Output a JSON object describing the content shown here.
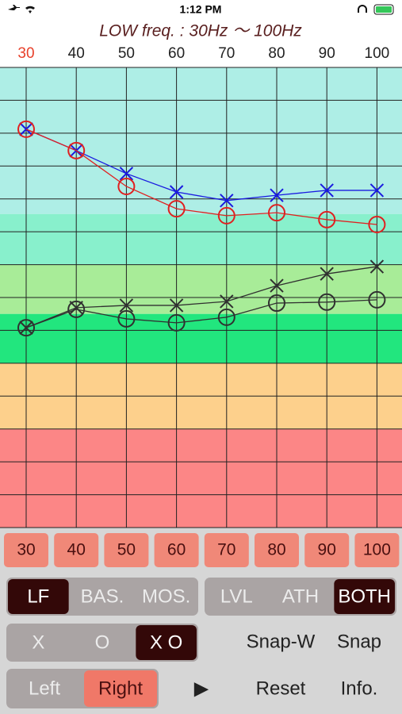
{
  "status_bar": {
    "time": "1:12 PM"
  },
  "chart_data": {
    "type": "line",
    "title": "LOW freq. : 30Hz 〜 100Hz",
    "categories": [
      "30",
      "40",
      "50",
      "60",
      "70",
      "80",
      "90",
      "100"
    ],
    "selected_index": 0,
    "highlight_color": "#e8402a",
    "ylim": [
      0,
      14
    ],
    "y_inverted": true,
    "yticks": [
      0,
      1,
      2,
      3,
      4,
      5,
      6,
      7,
      8,
      9,
      10,
      11,
      12,
      13,
      14
    ],
    "grid": true,
    "bands": [
      {
        "from": 0,
        "to": 4.46,
        "color": "#aeeee6"
      },
      {
        "from": 4.46,
        "to": 6,
        "color": "#88f0cc"
      },
      {
        "from": 6,
        "to": 7.5,
        "color": "#a8ec98"
      },
      {
        "from": 7.5,
        "to": 9,
        "color": "#22e67e"
      },
      {
        "from": 9,
        "to": 11,
        "color": "#fdd08c"
      },
      {
        "from": 11,
        "to": 14,
        "color": "#fc8686"
      }
    ],
    "series": [
      {
        "color": "#1a1ae0",
        "marker": "x",
        "values": [
          1.88,
          2.53,
          3.23,
          3.79,
          4.05,
          3.89,
          3.74,
          3.74
        ]
      },
      {
        "color": "#e02020",
        "marker": "o",
        "values": [
          1.88,
          2.53,
          3.62,
          4.3,
          4.51,
          4.42,
          4.63,
          4.78
        ]
      },
      {
        "color": "#303030",
        "marker": "x",
        "values": [
          7.92,
          7.31,
          7.24,
          7.24,
          7.12,
          6.64,
          6.28,
          6.06
        ]
      },
      {
        "color": "#303030",
        "marker": "o",
        "values": [
          7.92,
          7.36,
          7.65,
          7.77,
          7.6,
          7.17,
          7.14,
          7.07
        ]
      }
    ]
  },
  "controls": {
    "mode": {
      "options": [
        "LF",
        "BAS.",
        "MOS."
      ],
      "selected": 0
    },
    "view": {
      "options": [
        "LVL",
        "ATH",
        "BOTH"
      ],
      "selected": 2
    },
    "marker": {
      "options": [
        "X",
        "O",
        "X O"
      ],
      "selected": 2
    },
    "snap": [
      "Snap-W",
      "Snap"
    ],
    "ear": {
      "options": [
        "Left",
        "Right"
      ],
      "selected": 1
    },
    "play": "▶",
    "reset": "Reset",
    "info": "Info."
  }
}
